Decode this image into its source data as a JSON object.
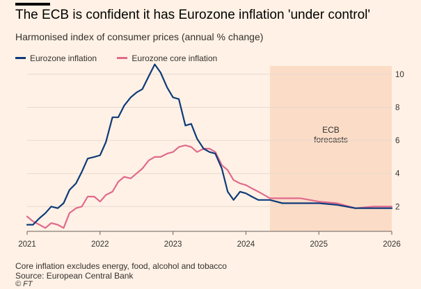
{
  "header": {
    "title": "The ECB is confident it has Eurozone inflation 'under control'",
    "subtitle": "Harmonised index of consumer prices (annual % change)"
  },
  "footer": {
    "note": "Core inflation excludes energy, food, alcohol and tobacco",
    "source": "Source: European Central Bank",
    "credit": "© FT"
  },
  "colors": {
    "background": "#fff1e5",
    "forecast_shade": "#fbdcc7",
    "headline": "#0d3a7a",
    "core": "#e06a8c",
    "grid": "#e6d9ce",
    "text": "#33302e"
  },
  "chart_data": {
    "type": "line",
    "title": "The ECB is confident it has Eurozone inflation 'under control'",
    "subtitle": "Harmonised index of consumer prices (annual % change)",
    "xlabel": "",
    "ylabel": "",
    "xlim": [
      2021.0,
      2026.0
    ],
    "ylim": [
      0.5,
      10.5
    ],
    "x_ticks": [
      "2021",
      "2022",
      "2023",
      "2024",
      "2025",
      "2026"
    ],
    "y_ticks": [
      "2",
      "4",
      "6",
      "8",
      "10"
    ],
    "y_axis_side": "right",
    "grid": true,
    "legend": "top-left",
    "forecast_region": {
      "start": 2024.33,
      "end": 2026.0,
      "label_line1": "ECB",
      "label_line2": "forecasts"
    },
    "series": [
      {
        "name": "Eurozone inflation",
        "color": "#0d3a7a",
        "x": [
          2021.0,
          2021.08,
          2021.17,
          2021.25,
          2021.33,
          2021.42,
          2021.5,
          2021.58,
          2021.67,
          2021.75,
          2021.83,
          2021.92,
          2022.0,
          2022.08,
          2022.17,
          2022.25,
          2022.33,
          2022.42,
          2022.5,
          2022.58,
          2022.67,
          2022.75,
          2022.83,
          2022.92,
          2023.0,
          2023.08,
          2023.17,
          2023.25,
          2023.33,
          2023.42,
          2023.5,
          2023.58,
          2023.67,
          2023.75,
          2023.83,
          2023.92,
          2024.0,
          2024.08,
          2024.17,
          2024.25,
          2024.33,
          2024.5,
          2024.75,
          2025.0,
          2025.25,
          2025.5,
          2025.75,
          2026.0
        ],
        "y": [
          0.9,
          0.9,
          1.3,
          1.6,
          2.0,
          1.9,
          2.2,
          3.0,
          3.4,
          4.1,
          4.9,
          5.0,
          5.1,
          5.9,
          7.4,
          7.4,
          8.1,
          8.6,
          8.9,
          9.1,
          9.9,
          10.6,
          10.1,
          9.2,
          8.6,
          8.5,
          6.9,
          7.0,
          6.1,
          5.5,
          5.3,
          5.2,
          4.3,
          2.9,
          2.4,
          2.9,
          2.8,
          2.6,
          2.4,
          2.4,
          2.4,
          2.2,
          2.2,
          2.2,
          2.1,
          1.9,
          1.9,
          1.9
        ]
      },
      {
        "name": "Eurozone core inflation",
        "color": "#e06a8c",
        "x": [
          2021.0,
          2021.08,
          2021.17,
          2021.25,
          2021.33,
          2021.42,
          2021.5,
          2021.58,
          2021.67,
          2021.75,
          2021.83,
          2021.92,
          2022.0,
          2022.08,
          2022.17,
          2022.25,
          2022.33,
          2022.42,
          2022.5,
          2022.58,
          2022.67,
          2022.75,
          2022.83,
          2022.92,
          2023.0,
          2023.08,
          2023.17,
          2023.25,
          2023.33,
          2023.42,
          2023.5,
          2023.58,
          2023.67,
          2023.75,
          2023.83,
          2023.92,
          2024.0,
          2024.08,
          2024.17,
          2024.25,
          2024.33,
          2024.5,
          2024.75,
          2025.0,
          2025.25,
          2025.5,
          2025.75,
          2026.0
        ],
        "y": [
          1.4,
          1.1,
          0.9,
          0.7,
          1.0,
          0.9,
          0.7,
          1.6,
          1.9,
          2.0,
          2.6,
          2.6,
          2.3,
          2.7,
          2.9,
          3.5,
          3.8,
          3.7,
          4.0,
          4.3,
          4.8,
          5.0,
          5.0,
          5.2,
          5.3,
          5.6,
          5.7,
          5.6,
          5.3,
          5.5,
          5.5,
          5.3,
          4.5,
          4.2,
          3.6,
          3.4,
          3.3,
          3.1,
          2.9,
          2.7,
          2.5,
          2.5,
          2.5,
          2.3,
          2.2,
          1.9,
          2.0,
          2.0
        ]
      }
    ]
  }
}
